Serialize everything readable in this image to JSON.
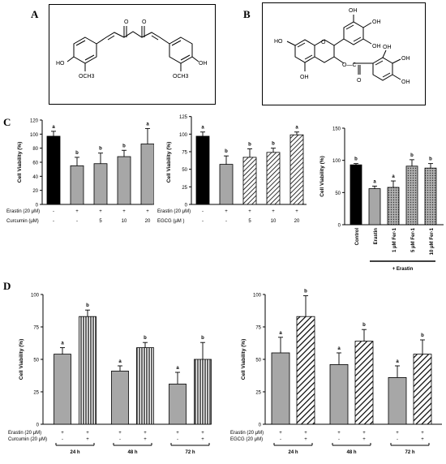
{
  "panels": {
    "a": "A",
    "b": "B",
    "c": "C",
    "d": "D"
  },
  "structures": {
    "curcumin": {
      "oh_left": "HO",
      "och3_left": "OCH3",
      "o1": "O",
      "o2": "O",
      "oh_right": "OH",
      "och3_right": "OCH3"
    },
    "egcg": {
      "ho_left": "HO",
      "oh_top1": "OH",
      "oh_top2": "OH",
      "oh_top3": "OH",
      "o_ring": "O",
      "oh_bottom": "OH",
      "ester": "O—C",
      "carbonyl_o": "O",
      "oh_g1": "OH",
      "oh_g2": "OH",
      "oh_g3": "OH"
    }
  },
  "chart_data": [
    {
      "id": "c1",
      "type": "bar",
      "ylabel": "Cell Viability (%)",
      "ylim": [
        0,
        120
      ],
      "yticks": [
        0,
        20,
        40,
        60,
        80,
        100,
        120
      ],
      "values": [
        97,
        55,
        58,
        68,
        86
      ],
      "errors": [
        7,
        12,
        15,
        9,
        22
      ],
      "letters": [
        "a",
        "b",
        "b",
        "b",
        "a"
      ],
      "fills": [
        "solid",
        "gray",
        "gray",
        "gray",
        "gray"
      ],
      "rows": [
        {
          "label": "Erastin (20 μM)",
          "cells": [
            "-",
            "+",
            "+",
            "+",
            "+"
          ]
        },
        {
          "label": "Curcumin (μM)",
          "cells": [
            "-",
            "-",
            "5",
            "10",
            "20"
          ]
        }
      ]
    },
    {
      "id": "c2",
      "type": "bar",
      "ylabel": "Cell Viability (%)",
      "ylim": [
        0,
        120
      ],
      "yticks": [
        0,
        25,
        50,
        75,
        100,
        125
      ],
      "values": [
        97,
        57,
        67,
        74,
        99
      ],
      "errors": [
        6,
        12,
        12,
        6,
        4
      ],
      "letters": [
        "a",
        "b",
        "b",
        "b",
        "a"
      ],
      "fills": [
        "solid",
        "gray",
        "hatch",
        "hatch",
        "hatch"
      ],
      "rows": [
        {
          "label": "Erastin (20 μM)",
          "cells": [
            "-",
            "+",
            "+",
            "+",
            "+"
          ]
        },
        {
          "label": "EGCG (μM )",
          "cells": [
            "-",
            "-",
            "5",
            "10",
            "20"
          ]
        }
      ]
    },
    {
      "id": "c3",
      "type": "bar",
      "ylabel": "Cell Viability (%)",
      "ylim": [
        0,
        150
      ],
      "yticks": [
        0,
        50,
        100,
        150
      ],
      "categories": [
        "Control",
        "Erastin",
        "1 μM Fer-1",
        "5 μM Fer-1",
        "10 μM Fer-1"
      ],
      "values": [
        93,
        56,
        58,
        91,
        88
      ],
      "errors": [
        2,
        4,
        10,
        10,
        7
      ],
      "letters": [
        "b",
        "a",
        "a",
        "b",
        "b"
      ],
      "fills": [
        "solid",
        "gray",
        "dots",
        "dots",
        "dots"
      ],
      "bracket_label": "+ Erastin"
    },
    {
      "id": "d1",
      "type": "bar",
      "ylabel": "Cell Viability (%)",
      "ylim": [
        0,
        100
      ],
      "yticks": [
        0,
        25,
        50,
        75,
        100
      ],
      "values": [
        54,
        83,
        41,
        59,
        31,
        50
      ],
      "errors": [
        5,
        5,
        4,
        4,
        9,
        13
      ],
      "letters": [
        "a",
        "b",
        "a",
        "b",
        "a",
        "b"
      ],
      "fills": [
        "gray",
        "vstripe",
        "gray",
        "vstripe",
        "gray",
        "vstripe"
      ],
      "rows": [
        {
          "label": "Erastin (20 μM)",
          "cells": [
            "+",
            "+",
            "+",
            "+",
            "+",
            "+"
          ]
        },
        {
          "label": "Curcumin (20 μM)",
          "cells": [
            "-",
            "+",
            "-",
            "+",
            "-",
            "+"
          ]
        }
      ],
      "groups": [
        "24 h",
        "48 h",
        "72 h"
      ]
    },
    {
      "id": "d2",
      "type": "bar",
      "ylabel": "Cell Viability (%)",
      "ylim": [
        0,
        100
      ],
      "yticks": [
        0,
        25,
        50,
        75,
        100
      ],
      "values": [
        55,
        83,
        46,
        64,
        36,
        54
      ],
      "errors": [
        12,
        16,
        9,
        9,
        9,
        11
      ],
      "letters": [
        "a",
        "b",
        "a",
        "b",
        "a",
        "b"
      ],
      "fills": [
        "gray",
        "dhatch",
        "gray",
        "dhatch",
        "gray",
        "dhatch"
      ],
      "rows": [
        {
          "label": "Erastin (20 μM)",
          "cells": [
            "+",
            "+",
            "+",
            "+",
            "+",
            "+"
          ]
        },
        {
          "label": "EGCG (20 μM)",
          "cells": [
            "-",
            "+",
            "-",
            "+",
            "-",
            "+"
          ]
        }
      ],
      "groups": [
        "24 h",
        "48 h",
        "72 h"
      ]
    }
  ]
}
